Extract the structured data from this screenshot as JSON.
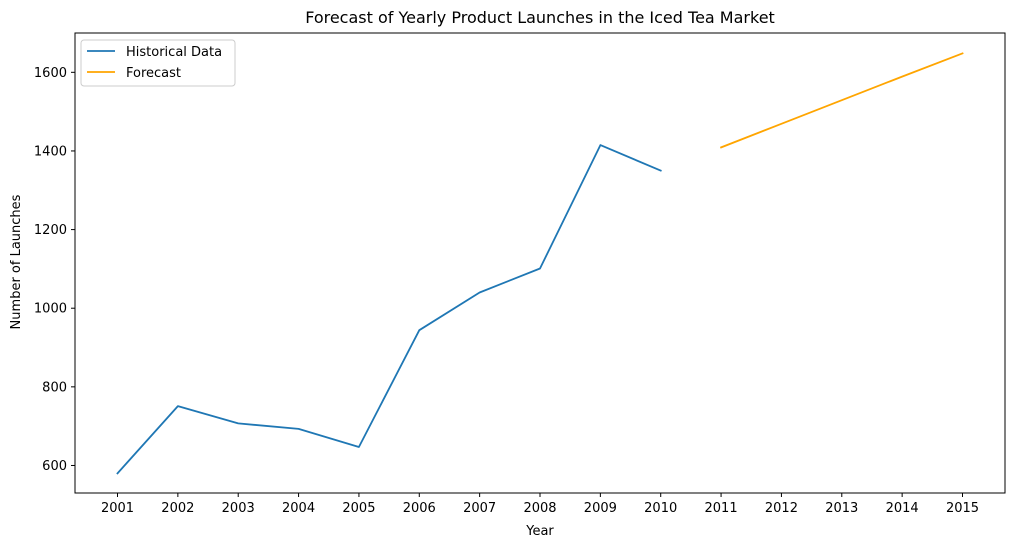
{
  "chart_data": {
    "type": "line",
    "title": "Forecast of Yearly Product Launches in the Iced Tea Market",
    "xlabel": "Year",
    "ylabel": "Number of Launches",
    "x_categories": [
      "2001",
      "2002",
      "2003",
      "2004",
      "2005",
      "2006",
      "2007",
      "2008",
      "2009",
      "2010",
      "2011",
      "2012",
      "2013",
      "2014",
      "2015"
    ],
    "y_ticks": [
      600,
      800,
      1000,
      1200,
      1400,
      1600
    ],
    "ylim": [
      530,
      1700
    ],
    "grid": false,
    "legend_position": "top-left",
    "series": [
      {
        "name": "Historical Data",
        "color": "#1f77b4",
        "x": [
          "2001",
          "2002",
          "2003",
          "2004",
          "2005",
          "2006",
          "2007",
          "2008",
          "2009",
          "2010"
        ],
        "y": [
          580,
          751,
          707,
          693,
          647,
          944,
          1040,
          1101,
          1415,
          1350
        ]
      },
      {
        "name": "Forecast",
        "color": "#ffa500",
        "x": [
          "2011",
          "2012",
          "2013",
          "2014",
          "2015"
        ],
        "y": [
          1409,
          1469,
          1529,
          1589,
          1648
        ]
      }
    ]
  }
}
